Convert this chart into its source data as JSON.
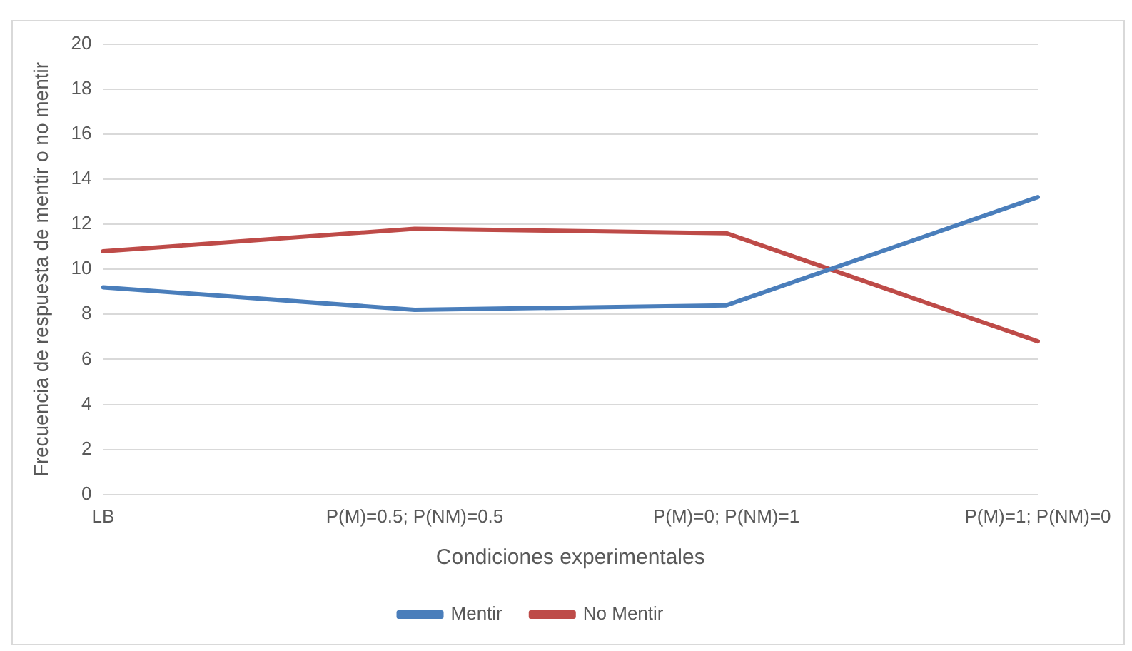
{
  "chart_data": {
    "type": "line",
    "xlabel": "Condiciones experimentales",
    "ylabel": "Frecuencia de respuesta de mentir o no mentir",
    "categories": [
      "LB",
      "P(M)=0.5; P(NM)=0.5",
      "P(M)=0; P(NM)=1",
      "P(M)=1; P(NM)=0"
    ],
    "series": [
      {
        "name": "Mentir",
        "color": "#4a7ebb",
        "values": [
          9.2,
          8.2,
          8.4,
          13.2
        ]
      },
      {
        "name": "No Mentir",
        "color": "#be4b48",
        "values": [
          10.8,
          11.8,
          11.6,
          6.8
        ]
      }
    ],
    "ylim": [
      0,
      20
    ],
    "yticks": [
      0,
      2,
      4,
      6,
      8,
      10,
      12,
      14,
      16,
      18,
      20
    ],
    "grid": "y",
    "legend": "bottom",
    "marker": "none",
    "line_style": "solid"
  }
}
